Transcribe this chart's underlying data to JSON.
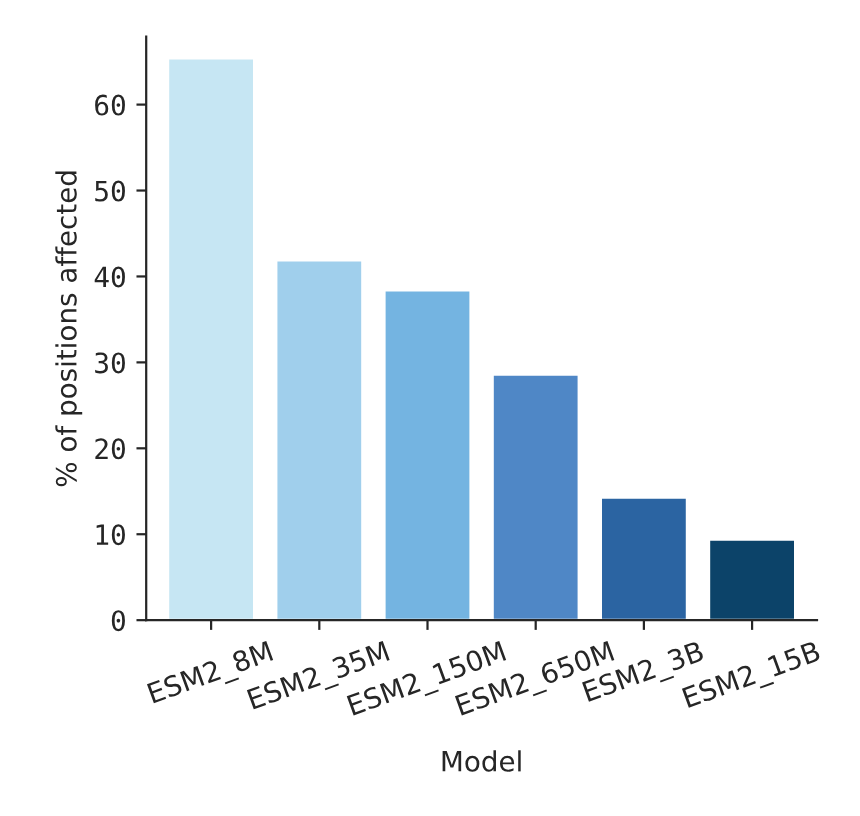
{
  "chart_data": {
    "type": "bar",
    "xlabel": "Model",
    "ylabel": "% of positions affected",
    "categories": [
      "ESM2_8M",
      "ESM2_35M",
      "ESM2_150M",
      "ESM2_650M",
      "ESM2_3B",
      "ESM2_15B"
    ],
    "values": [
      65.4,
      41.9,
      38.4,
      28.6,
      14.3,
      9.4
    ],
    "colors": [
      "#c6e6f3",
      "#a0cfec",
      "#74b4e1",
      "#4f87c6",
      "#2b64a2",
      "#0c4369"
    ],
    "ylim": [
      0,
      67.9
    ],
    "yticks": [
      0,
      10,
      20,
      30,
      40,
      50,
      60
    ],
    "grid": false
  }
}
